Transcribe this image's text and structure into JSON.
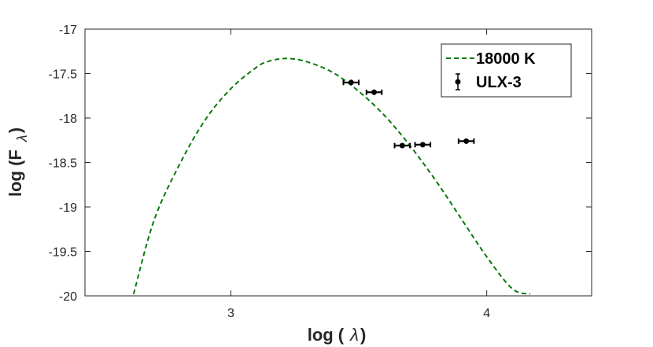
{
  "chart_data": {
    "type": "line",
    "title": "",
    "xlabel_parts": [
      "log (",
      "λ",
      ")"
    ],
    "ylabel_parts": [
      "log (F",
      "λ",
      ")"
    ],
    "xlim": [
      2.43,
      4.41
    ],
    "ylim": [
      -20,
      -17
    ],
    "xticks": [
      3,
      4
    ],
    "yticks": [
      -17,
      -17.5,
      -18,
      -18.5,
      -19,
      -19.5,
      -20
    ],
    "ytick_labels": [
      "-17",
      "-17.5",
      "-18",
      "-18.5",
      "-19",
      "-19.5",
      "-20"
    ],
    "xtick_labels": [
      "3",
      "4"
    ],
    "grid": false,
    "legend_position": "top-right",
    "series": [
      {
        "name": "18000 K",
        "style": "dashed-line",
        "color": "#0b7a0b",
        "x": [
          2.62,
          2.7,
          2.8,
          2.9,
          3.0,
          3.1,
          3.15,
          3.22,
          3.3,
          3.4,
          3.5,
          3.6,
          3.7,
          3.8,
          3.9,
          4.0,
          4.1,
          4.17
        ],
        "y": [
          -19.98,
          -19.15,
          -18.52,
          -18.02,
          -17.67,
          -17.43,
          -17.36,
          -17.33,
          -17.37,
          -17.49,
          -17.7,
          -17.97,
          -18.31,
          -18.7,
          -19.13,
          -19.56,
          -19.92,
          -19.98
        ]
      },
      {
        "name": "ULX-3",
        "style": "points-with-error-bars",
        "color": "#000000",
        "points": [
          {
            "x": 3.47,
            "y": -17.6,
            "xerr": 0.03,
            "yerr": 0.03
          },
          {
            "x": 3.56,
            "y": -17.71,
            "xerr": 0.03,
            "yerr": 0.03
          },
          {
            "x": 3.67,
            "y": -18.31,
            "xerr": 0.03,
            "yerr": 0.03
          },
          {
            "x": 3.75,
            "y": -18.3,
            "xerr": 0.03,
            "yerr": 0.03
          },
          {
            "x": 3.92,
            "y": -18.26,
            "xerr": 0.03,
            "yerr": 0.03
          }
        ]
      }
    ]
  }
}
